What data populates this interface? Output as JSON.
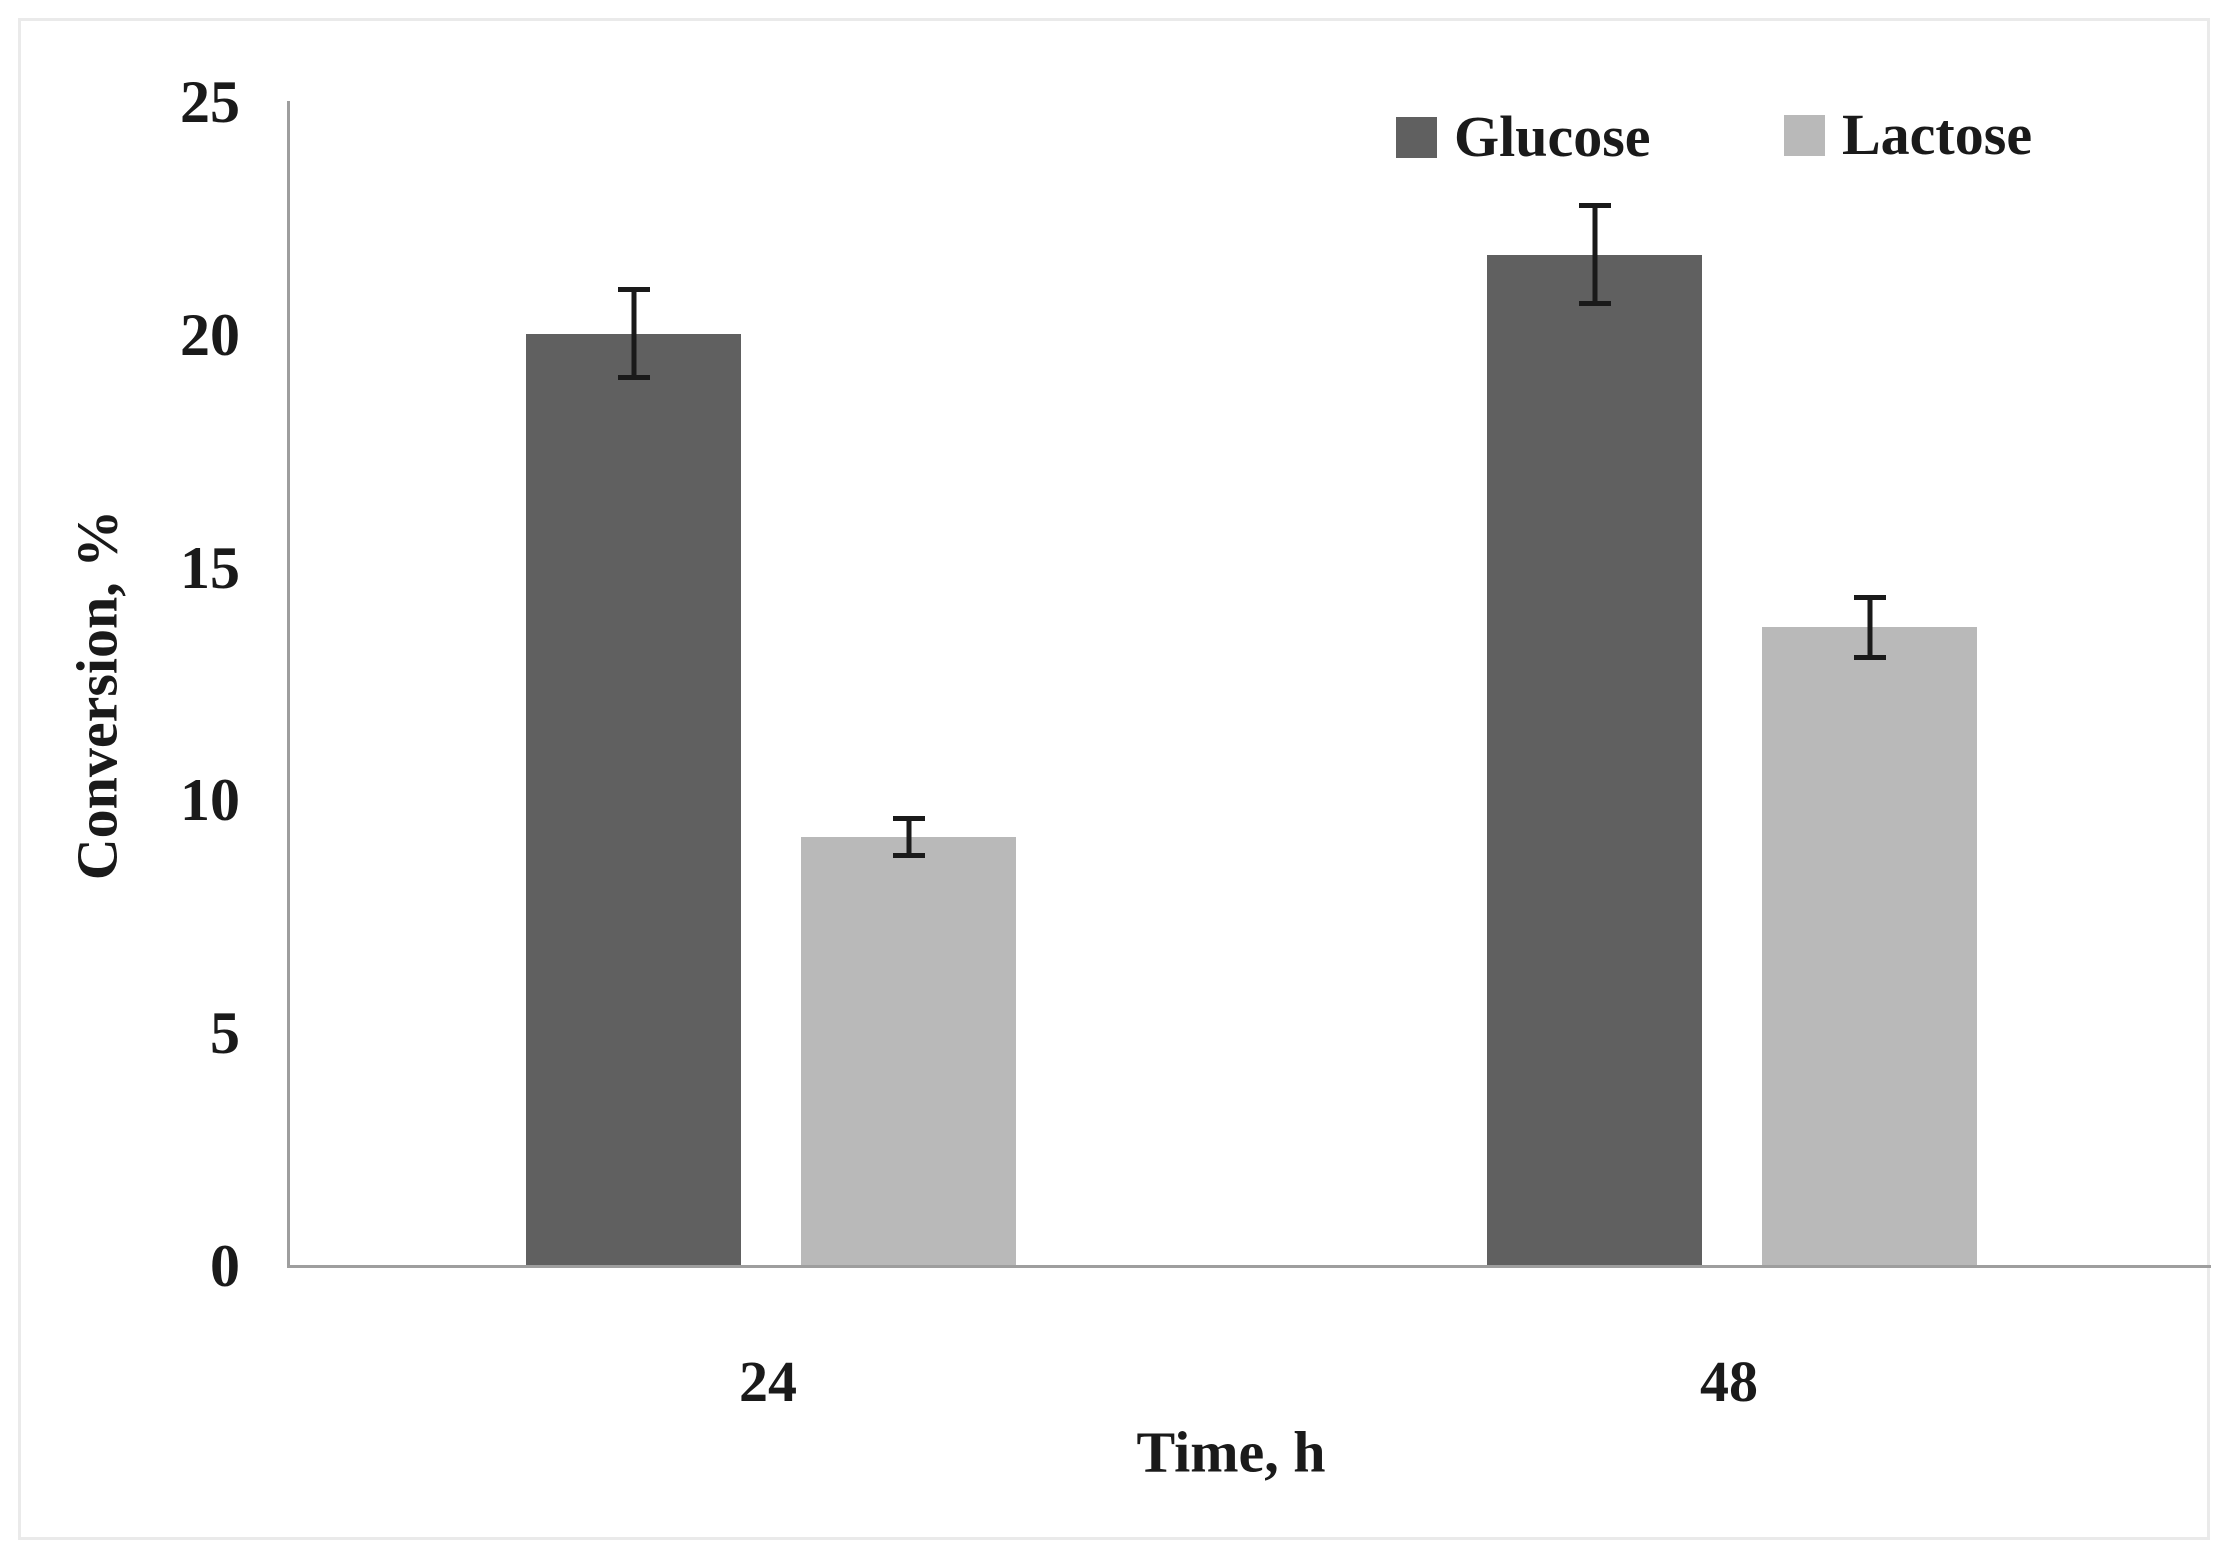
{
  "chart_data": {
    "type": "bar",
    "title": "",
    "categories": [
      "24",
      "48"
    ],
    "xlabel": "Time, h",
    "ylabel": "Conversion, %",
    "ylim": [
      0,
      25
    ],
    "yticks": [
      0,
      5,
      10,
      15,
      20,
      25
    ],
    "grid": false,
    "legend_position": "top-right",
    "axis_color": "#9e9e9e",
    "text_color": "#1a1a1a",
    "background_color": "#ffffff",
    "series": [
      {
        "name": "Glucose",
        "color": "#606060",
        "values": [
          20.0,
          21.7
        ],
        "errors": [
          1.0,
          1.1
        ]
      },
      {
        "name": "Lactose",
        "color": "#b9b9b9",
        "values": [
          9.2,
          13.7
        ],
        "errors": [
          0.45,
          0.7
        ]
      }
    ]
  }
}
